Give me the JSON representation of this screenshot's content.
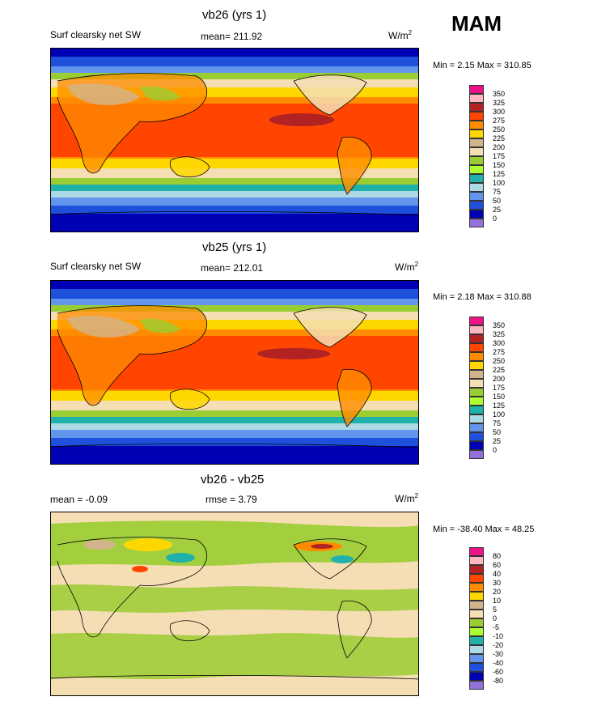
{
  "season": "MAM",
  "panels": [
    {
      "title": "vb26 (yrs 1)",
      "left_label": "Surf clearsky net SW",
      "center_label": "mean= 211.92",
      "units": "W/m",
      "units_sup": "2",
      "minmax": "Min =   2.15 Max = 310.85",
      "levels": [
        "350",
        "325",
        "300",
        "275",
        "250",
        "225",
        "200",
        "175",
        "150",
        "125",
        "100",
        "75",
        "50",
        "25",
        "0"
      ]
    },
    {
      "title": "vb25 (yrs 1)",
      "left_label": "Surf clearsky net SW",
      "center_label": "mean= 212.01",
      "units": "W/m",
      "units_sup": "2",
      "minmax": "Min =   2.18 Max = 310.88",
      "levels": [
        "350",
        "325",
        "300",
        "275",
        "250",
        "225",
        "200",
        "175",
        "150",
        "125",
        "100",
        "75",
        "50",
        "25",
        "0"
      ]
    },
    {
      "title": "vb26 - vb25",
      "left_label": "mean =  -0.09",
      "center_label": "rmse =   3.79",
      "units": "W/m",
      "units_sup": "2",
      "minmax": "Min = -38.40 Max =  48.25",
      "levels": [
        "80",
        "60",
        "40",
        "30",
        "20",
        "10",
        "5",
        "0",
        "-5",
        "-10",
        "-20",
        "-30",
        "-40",
        "-60",
        "-80"
      ]
    }
  ],
  "colors": {
    "scale": [
      "#ee1188",
      "#ffb6c1",
      "#b22222",
      "#ff4500",
      "#ff8c00",
      "#ffd700",
      "#d2b48c",
      "#f5deb3",
      "#9acd32",
      "#adff2f",
      "#20b2aa",
      "#add8e6",
      "#6495ed",
      "#1e50dc",
      "#0000b4",
      "#9370db"
    ]
  }
}
